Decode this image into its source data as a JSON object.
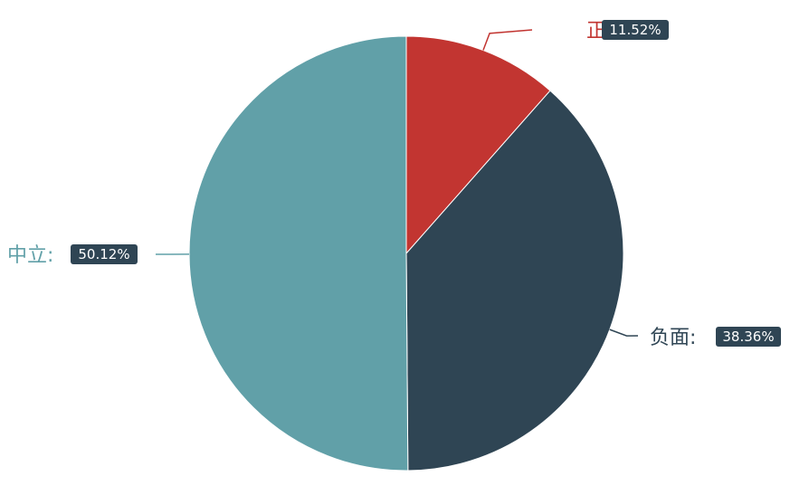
{
  "chart_data": {
    "type": "pie",
    "title": "",
    "slices": [
      {
        "name": "正面",
        "display_name": "正面:",
        "value": 11.52,
        "percent_label": "11.52%",
        "color": "#c23531"
      },
      {
        "name": "负面",
        "display_name": "负面:",
        "value": 38.36,
        "percent_label": "38.36%",
        "color": "#2f4554"
      },
      {
        "name": "中立",
        "display_name": "中立:",
        "value": 50.12,
        "percent_label": "50.12%",
        "color": "#61a0a8"
      }
    ],
    "label_badge_color": "#2f4554",
    "start_angle_deg": 90,
    "direction": "clockwise",
    "legend": "none"
  }
}
